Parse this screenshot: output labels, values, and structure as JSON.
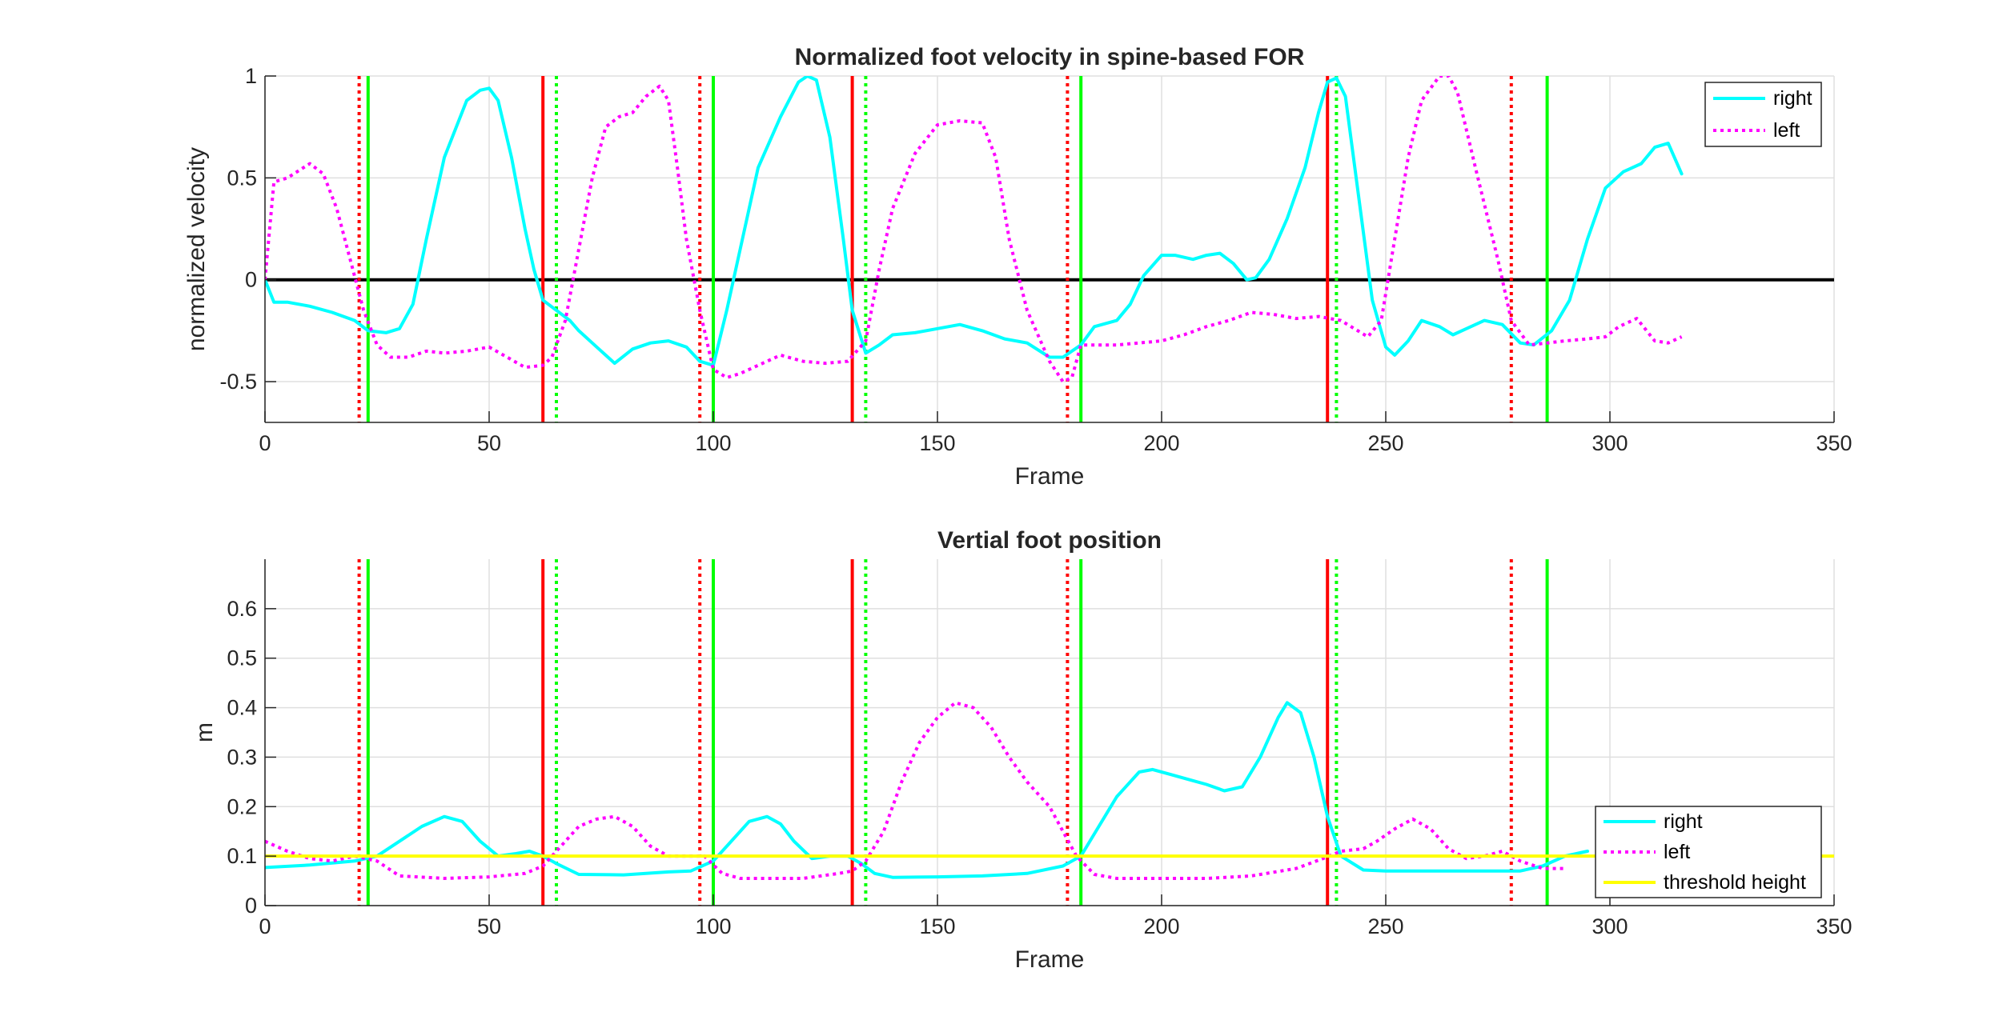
{
  "chart_data": [
    {
      "type": "line",
      "title": "Normalized foot velocity in spine-based FOR",
      "xlabel": "Frame",
      "ylabel": "normalized velocity",
      "xlim": [
        0,
        350
      ],
      "ylim": [
        -0.7,
        1
      ],
      "xticks": [
        "0",
        "50",
        "100",
        "150",
        "200",
        "250",
        "300",
        "350"
      ],
      "yticks": [
        {
          "value": -0.5,
          "label": "-0.5"
        },
        {
          "value": 0,
          "label": "0"
        },
        {
          "value": 0.5,
          "label": "0.5"
        },
        {
          "value": 1,
          "label": "1"
        }
      ],
      "grid": true,
      "legend_position": "top-right",
      "series": [
        {
          "name": "right",
          "color": "#00ffff",
          "style": "solid",
          "x": [
            0,
            2,
            5,
            10,
            15,
            20,
            23,
            27,
            30,
            33,
            36,
            40,
            45,
            48,
            50,
            52,
            55,
            58,
            60,
            62,
            65,
            68,
            70,
            74,
            78,
            82,
            86,
            90,
            94,
            97,
            100,
            103,
            106,
            110,
            115,
            119,
            121,
            123,
            126,
            129,
            131,
            134,
            137,
            140,
            145,
            150,
            155,
            160,
            165,
            170,
            175,
            178,
            182,
            185,
            190,
            193,
            196,
            200,
            203,
            207,
            210,
            213,
            216,
            219,
            221,
            224,
            228,
            232,
            235,
            237,
            239,
            241,
            244,
            247,
            250,
            252,
            255,
            258,
            262,
            265,
            268,
            272,
            276,
            280,
            283,
            287,
            291,
            295,
            299,
            303,
            307,
            310,
            313,
            316
          ],
          "y": [
            0,
            -0.11,
            -0.11,
            -0.13,
            -0.16,
            -0.2,
            -0.25,
            -0.26,
            -0.24,
            -0.12,
            0.2,
            0.6,
            0.88,
            0.93,
            0.94,
            0.88,
            0.6,
            0.25,
            0.05,
            -0.1,
            -0.15,
            -0.2,
            -0.25,
            -0.33,
            -0.41,
            -0.34,
            -0.31,
            -0.3,
            -0.33,
            -0.4,
            -0.42,
            -0.15,
            0.15,
            0.55,
            0.8,
            0.97,
            1.0,
            0.98,
            0.7,
            0.2,
            -0.15,
            -0.36,
            -0.32,
            -0.27,
            -0.26,
            -0.24,
            -0.22,
            -0.25,
            -0.29,
            -0.31,
            -0.38,
            -0.38,
            -0.32,
            -0.23,
            -0.2,
            -0.12,
            0.02,
            0.12,
            0.12,
            0.1,
            0.12,
            0.13,
            0.08,
            0.0,
            0.01,
            0.1,
            0.3,
            0.55,
            0.82,
            0.97,
            0.99,
            0.9,
            0.4,
            -0.1,
            -0.33,
            -0.37,
            -0.3,
            -0.2,
            -0.23,
            -0.27,
            -0.24,
            -0.2,
            -0.22,
            -0.31,
            -0.32,
            -0.25,
            -0.1,
            0.2,
            0.45,
            0.53,
            0.57,
            0.65,
            0.67,
            0.52
          ]
        },
        {
          "name": "left",
          "color": "#ff00ff",
          "style": "dotted",
          "x": [
            0,
            2,
            5,
            10,
            13,
            16,
            19,
            22,
            25,
            28,
            32,
            36,
            40,
            45,
            50,
            54,
            58,
            62,
            64,
            67,
            70,
            73,
            76,
            79,
            82,
            85,
            88,
            90,
            92,
            94,
            97,
            100,
            103,
            106,
            110,
            115,
            120,
            125,
            130,
            134,
            137,
            140,
            145,
            150,
            155,
            160,
            163,
            166,
            170,
            175,
            178,
            180,
            182,
            186,
            190,
            195,
            200,
            205,
            210,
            215,
            220,
            225,
            230,
            235,
            240,
            243,
            246,
            249,
            252,
            255,
            258,
            262,
            264,
            266,
            270,
            275,
            278,
            282,
            286,
            290,
            295,
            299,
            302,
            306,
            310,
            313,
            316
          ],
          "y": [
            0,
            0.48,
            0.5,
            0.57,
            0.52,
            0.35,
            0.1,
            -0.15,
            -0.32,
            -0.38,
            -0.38,
            -0.35,
            -0.36,
            -0.35,
            -0.33,
            -0.38,
            -0.43,
            -0.42,
            -0.38,
            -0.2,
            0.15,
            0.5,
            0.75,
            0.8,
            0.82,
            0.9,
            0.95,
            0.88,
            0.55,
            0.2,
            -0.15,
            -0.44,
            -0.48,
            -0.46,
            -0.42,
            -0.37,
            -0.4,
            -0.41,
            -0.4,
            -0.3,
            0.05,
            0.35,
            0.62,
            0.76,
            0.78,
            0.77,
            0.6,
            0.2,
            -0.15,
            -0.4,
            -0.5,
            -0.48,
            -0.32,
            -0.32,
            -0.32,
            -0.31,
            -0.3,
            -0.27,
            -0.23,
            -0.2,
            -0.16,
            -0.17,
            -0.19,
            -0.18,
            -0.2,
            -0.24,
            -0.28,
            -0.2,
            0.2,
            0.6,
            0.88,
            1.0,
            1.0,
            0.92,
            0.55,
            0.1,
            -0.2,
            -0.32,
            -0.31,
            -0.3,
            -0.29,
            -0.28,
            -0.23,
            -0.19,
            -0.3,
            -0.31,
            -0.28
          ]
        }
      ],
      "reference_lines": [
        {
          "axis": "y",
          "value": 0,
          "color": "#000000",
          "style": "solid"
        }
      ],
      "event_lines": [
        {
          "x": 21,
          "color": "#ff0000",
          "style": "dotted"
        },
        {
          "x": 23,
          "color": "#00ff00",
          "style": "solid"
        },
        {
          "x": 62,
          "color": "#ff0000",
          "style": "solid"
        },
        {
          "x": 65,
          "color": "#00ff00",
          "style": "dotted"
        },
        {
          "x": 97,
          "color": "#ff0000",
          "style": "dotted"
        },
        {
          "x": 100,
          "color": "#00ff00",
          "style": "solid"
        },
        {
          "x": 131,
          "color": "#ff0000",
          "style": "solid"
        },
        {
          "x": 134,
          "color": "#00ff00",
          "style": "dotted"
        },
        {
          "x": 179,
          "color": "#ff0000",
          "style": "dotted"
        },
        {
          "x": 182,
          "color": "#00ff00",
          "style": "solid"
        },
        {
          "x": 237,
          "color": "#ff0000",
          "style": "solid"
        },
        {
          "x": 239,
          "color": "#00ff00",
          "style": "dotted"
        },
        {
          "x": 278,
          "color": "#ff0000",
          "style": "dotted"
        },
        {
          "x": 286,
          "color": "#00ff00",
          "style": "solid"
        }
      ]
    },
    {
      "type": "line",
      "title": "Vertial foot position",
      "xlabel": "Frame",
      "ylabel": "m",
      "xlim": [
        0,
        350
      ],
      "ylim": [
        0,
        0.7
      ],
      "xticks": [
        "0",
        "50",
        "100",
        "150",
        "200",
        "250",
        "300",
        "350"
      ],
      "yticks": [
        {
          "value": 0,
          "label": "0"
        },
        {
          "value": 0.1,
          "label": "0.1"
        },
        {
          "value": 0.2,
          "label": "0.2"
        },
        {
          "value": 0.3,
          "label": "0.3"
        },
        {
          "value": 0.4,
          "label": "0.4"
        },
        {
          "value": 0.5,
          "label": "0.5"
        },
        {
          "value": 0.6,
          "label": "0.6"
        }
      ],
      "grid": true,
      "legend_position": "bottom-right",
      "series": [
        {
          "name": "right",
          "color": "#00ffff",
          "style": "solid",
          "x": [
            0,
            10,
            20,
            25,
            30,
            35,
            40,
            44,
            48,
            52,
            56,
            59,
            62,
            65,
            70,
            80,
            90,
            95,
            100,
            104,
            108,
            112,
            115,
            118,
            122,
            126,
            130,
            133,
            136,
            140,
            150,
            160,
            170,
            178,
            182,
            186,
            190,
            195,
            198,
            202,
            206,
            210,
            214,
            218,
            222,
            226,
            228,
            231,
            234,
            237,
            240,
            245,
            250,
            260,
            270,
            280,
            285,
            290,
            295
          ],
          "y": [
            0.077,
            0.082,
            0.09,
            0.1,
            0.13,
            0.16,
            0.18,
            0.17,
            0.13,
            0.1,
            0.105,
            0.11,
            0.1,
            0.085,
            0.063,
            0.062,
            0.068,
            0.07,
            0.09,
            0.13,
            0.17,
            0.18,
            0.165,
            0.13,
            0.095,
            0.1,
            0.1,
            0.085,
            0.065,
            0.057,
            0.058,
            0.06,
            0.065,
            0.08,
            0.1,
            0.16,
            0.22,
            0.27,
            0.275,
            0.265,
            0.255,
            0.245,
            0.232,
            0.24,
            0.3,
            0.38,
            0.41,
            0.39,
            0.3,
            0.18,
            0.1,
            0.072,
            0.07,
            0.07,
            0.07,
            0.07,
            0.08,
            0.1,
            0.11
          ]
        },
        {
          "name": "left",
          "color": "#ff00ff",
          "style": "dotted",
          "x": [
            0,
            5,
            10,
            15,
            20,
            25,
            30,
            40,
            50,
            58,
            62,
            66,
            70,
            74,
            78,
            82,
            86,
            90,
            94,
            98,
            102,
            106,
            110,
            120,
            128,
            131,
            134,
            138,
            142,
            146,
            150,
            154,
            158,
            162,
            166,
            170,
            175,
            178,
            181,
            185,
            190,
            200,
            210,
            220,
            230,
            236,
            240,
            245,
            248,
            252,
            256,
            260,
            264,
            268,
            272,
            276,
            280,
            285,
            290
          ],
          "y": [
            0.13,
            0.11,
            0.095,
            0.09,
            0.1,
            0.09,
            0.06,
            0.055,
            0.058,
            0.065,
            0.08,
            0.12,
            0.16,
            0.175,
            0.18,
            0.16,
            0.12,
            0.1,
            0.1,
            0.1,
            0.065,
            0.055,
            0.055,
            0.055,
            0.065,
            0.07,
            0.09,
            0.15,
            0.25,
            0.33,
            0.38,
            0.41,
            0.4,
            0.36,
            0.3,
            0.25,
            0.2,
            0.15,
            0.1,
            0.063,
            0.055,
            0.055,
            0.055,
            0.06,
            0.075,
            0.095,
            0.11,
            0.115,
            0.13,
            0.155,
            0.175,
            0.155,
            0.115,
            0.095,
            0.1,
            0.11,
            0.09,
            0.075,
            0.075
          ]
        },
        {
          "name": "threshold height",
          "color": "#ffff00",
          "style": "solid",
          "x": [
            0,
            350
          ],
          "y": [
            0.1,
            0.1
          ]
        }
      ],
      "event_lines": [
        {
          "x": 21,
          "color": "#ff0000",
          "style": "dotted"
        },
        {
          "x": 23,
          "color": "#00ff00",
          "style": "solid"
        },
        {
          "x": 62,
          "color": "#ff0000",
          "style": "solid"
        },
        {
          "x": 65,
          "color": "#00ff00",
          "style": "dotted"
        },
        {
          "x": 97,
          "color": "#ff0000",
          "style": "dotted"
        },
        {
          "x": 100,
          "color": "#00ff00",
          "style": "solid"
        },
        {
          "x": 131,
          "color": "#ff0000",
          "style": "solid"
        },
        {
          "x": 134,
          "color": "#00ff00",
          "style": "dotted"
        },
        {
          "x": 179,
          "color": "#ff0000",
          "style": "dotted"
        },
        {
          "x": 182,
          "color": "#00ff00",
          "style": "solid"
        },
        {
          "x": 237,
          "color": "#ff0000",
          "style": "solid"
        },
        {
          "x": 239,
          "color": "#00ff00",
          "style": "dotted"
        },
        {
          "x": 278,
          "color": "#ff0000",
          "style": "dotted"
        },
        {
          "x": 286,
          "color": "#00ff00",
          "style": "solid"
        }
      ]
    }
  ]
}
